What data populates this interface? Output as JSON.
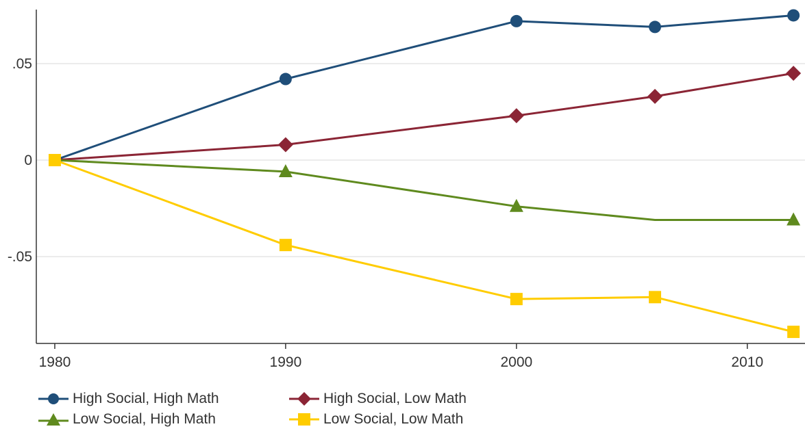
{
  "chart_data": {
    "type": "line",
    "x": [
      1980,
      1990,
      2000,
      2006,
      2012
    ],
    "x_ticks": [
      {
        "value": 1980,
        "label": "1980"
      },
      {
        "value": 1990,
        "label": "1990"
      },
      {
        "value": 2000,
        "label": "2000"
      },
      {
        "value": 2010,
        "label": "2010"
      }
    ],
    "y_ticks": [
      {
        "value": 0.05,
        "label": ".05"
      },
      {
        "value": 0,
        "label": "0"
      },
      {
        "value": -0.05,
        "label": "-.05"
      }
    ],
    "xlim": [
      1979.2,
      2012.5
    ],
    "ylim": [
      -0.095,
      0.078
    ],
    "grid": true,
    "legend_position": "bottom",
    "series": [
      {
        "name": "High Social, High Math",
        "color": "#1f4e79",
        "marker": "circle",
        "values": [
          0.0,
          0.042,
          0.072,
          0.069,
          0.075
        ],
        "markers_on": [
          false,
          true,
          true,
          true,
          true
        ]
      },
      {
        "name": "High Social, Low Math",
        "color": "#8b2535",
        "marker": "diamond",
        "values": [
          0.0,
          0.008,
          0.023,
          0.033,
          0.045
        ],
        "markers_on": [
          false,
          true,
          true,
          true,
          true
        ]
      },
      {
        "name": "Low Social, High Math",
        "color": "#5f8a1e",
        "marker": "triangle",
        "values": [
          0.0,
          -0.006,
          -0.024,
          -0.031,
          -0.031
        ],
        "markers_on": [
          false,
          true,
          true,
          false,
          true
        ]
      },
      {
        "name": "Low Social, Low Math",
        "color": "#ffcc00",
        "marker": "square",
        "values": [
          0.0,
          -0.044,
          -0.072,
          -0.071,
          -0.089
        ],
        "markers_on": [
          true,
          true,
          true,
          true,
          true
        ]
      }
    ]
  }
}
